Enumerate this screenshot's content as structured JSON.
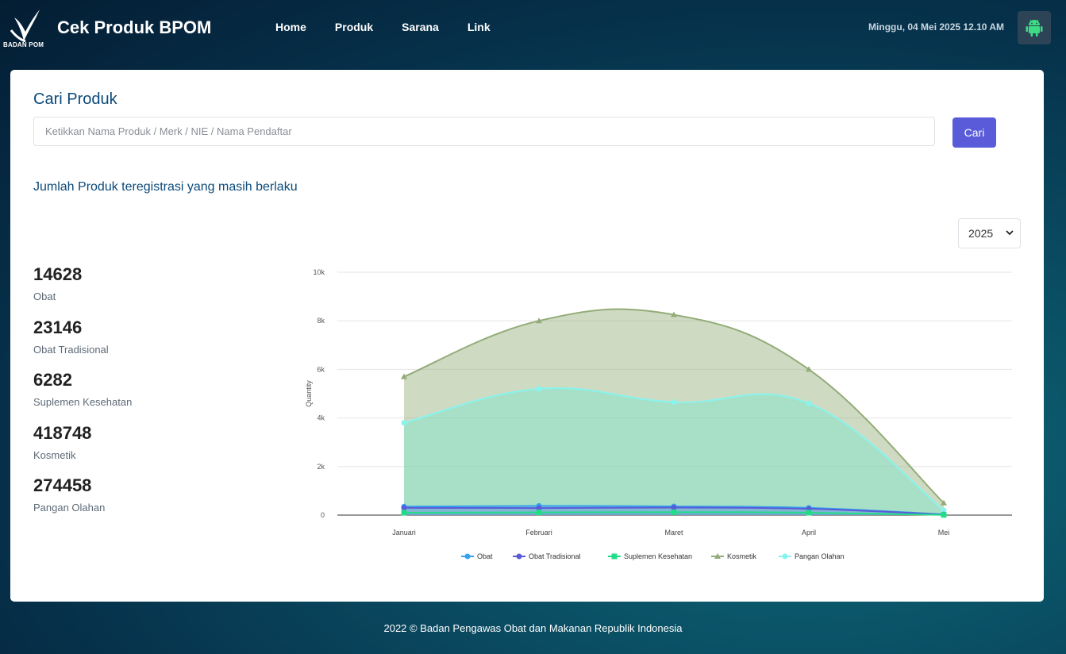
{
  "header": {
    "logo_text": "BADAN POM",
    "brand": "Cek Produk BPOM",
    "nav": [
      "Home",
      "Produk",
      "Sarana",
      "Link"
    ],
    "datetime": "Minggu, 04 Mei 2025 12.10 AM",
    "android_icon": "android-icon"
  },
  "search": {
    "title": "Cari Produk",
    "placeholder": "Ketikkan Nama Produk / Merk / NIE / Nama Pendaftar",
    "value": "",
    "button": "Cari"
  },
  "summary": {
    "title": "Jumlah Produk teregistrasi yang masih berlaku",
    "year": "2025",
    "items": [
      {
        "value": "14628",
        "label": "Obat"
      },
      {
        "value": "23146",
        "label": "Obat Tradisional"
      },
      {
        "value": "6282",
        "label": "Suplemen Kesehatan"
      },
      {
        "value": "418748",
        "label": "Kosmetik"
      },
      {
        "value": "274458",
        "label": "Pangan Olahan"
      }
    ]
  },
  "chart_data": {
    "type": "area",
    "categories": [
      "Januari",
      "Februari",
      "Maret",
      "April",
      "Mei"
    ],
    "ylabel": "Quantity",
    "ylim": [
      0,
      10000
    ],
    "yticks": [
      "0",
      "2k",
      "4k",
      "6k",
      "8k",
      "10k"
    ],
    "grid": true,
    "legend": "bottom",
    "series": [
      {
        "name": "Obat",
        "color": "#36a2eb",
        "values": [
          350,
          380,
          360,
          300,
          30
        ]
      },
      {
        "name": "Obat Tradisional",
        "color": "#5a5bd9",
        "values": [
          300,
          290,
          310,
          260,
          20
        ]
      },
      {
        "name": "Suplemen Kesehatan",
        "color": "#22dd88",
        "values": [
          100,
          110,
          120,
          100,
          10
        ]
      },
      {
        "name": "Kosmetik",
        "color": "#93ac78",
        "values": [
          5700,
          8000,
          8250,
          6000,
          500
        ]
      },
      {
        "name": "Pangan Olahan",
        "color": "#88f4ee",
        "values": [
          3800,
          5200,
          4650,
          4600,
          200
        ]
      }
    ]
  },
  "footer": "2022 ©  Badan Pengawas Obat dan Makanan Republik Indonesia"
}
